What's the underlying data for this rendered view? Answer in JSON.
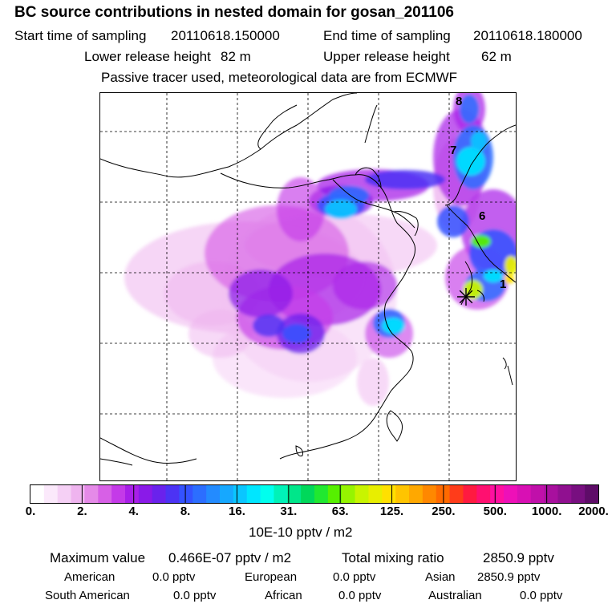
{
  "header": {
    "title": "BC  source contributions in nested domain for gosan_201106",
    "start_label": "Start time of sampling",
    "start_value": "20110618.150000",
    "end_label": "End time of sampling",
    "end_value": "20110618.180000",
    "lower_label": "Lower release height",
    "lower_value": "82 m",
    "upper_label": "Upper release height",
    "upper_value": "62 m",
    "note": "Passive tracer used, meteorological data are from ECMWF"
  },
  "chart_data": {
    "type": "heatmap",
    "colorbar": {
      "tick_labels": [
        "0.",
        "2.",
        "4.",
        "8.",
        "16.",
        "31.",
        "63.",
        "125.",
        "250.",
        "500.",
        "1000.",
        "2000."
      ],
      "colors": [
        "#ffffff",
        "#fbe9fb",
        "#f5d0f5",
        "#efb4ef",
        "#e58ae8",
        "#d760e6",
        "#c43ae8",
        "#a81fe8",
        "#8a1ae8",
        "#6a22ec",
        "#4c33f4",
        "#3452ff",
        "#2c6eff",
        "#238bff",
        "#16a8ff",
        "#0ac6ff",
        "#00e6ff",
        "#00ffee",
        "#00f2b8",
        "#00e68a",
        "#00d85a",
        "#20e830",
        "#56f000",
        "#96f400",
        "#c8f400",
        "#e8ee00",
        "#ffe000",
        "#ffc400",
        "#ffa800",
        "#ff8800",
        "#ff6a00",
        "#ff3c1a",
        "#ff1a40",
        "#ff1070",
        "#ff10a0",
        "#ee10b8",
        "#d810b4",
        "#c010aa",
        "#a8109e",
        "#901090",
        "#780f80",
        "#5e0c68"
      ],
      "units": "10E-10 pptv / m2"
    },
    "grid": true,
    "markers": [
      {
        "label": "8"
      },
      {
        "label": "7"
      },
      {
        "label": "6"
      },
      {
        "label": "1"
      }
    ],
    "receptor": "gosan"
  },
  "footer": {
    "max_label": "Maximum value",
    "max_value": "0.466E-07 pptv / m2",
    "total_label": "Total mixing ratio",
    "total_value": "2850.9 pptv",
    "american_label": "American",
    "american_value": "0.0 pptv",
    "european_label": "European",
    "european_value": "0.0 pptv",
    "asian_label": "Asian",
    "asian_value": "2850.9 pptv",
    "south_american_label": "South American",
    "south_american_value": "0.0 pptv",
    "african_label": "African",
    "african_value": "0.0 pptv",
    "australian_label": "Australian",
    "australian_value": "0.0 pptv"
  }
}
